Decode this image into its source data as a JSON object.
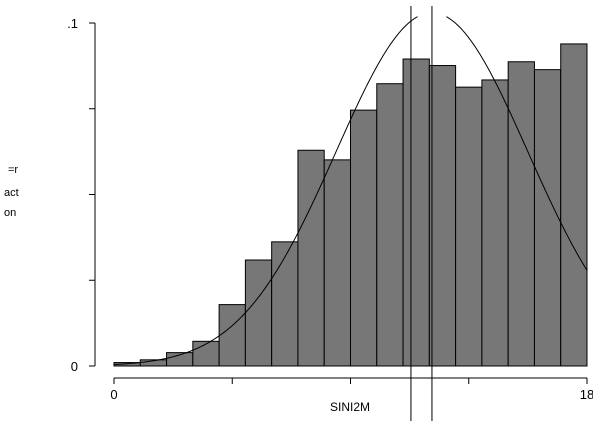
{
  "chart_data": {
    "type": "bar",
    "title": "",
    "xlabel": "SINI2M",
    "ylabel_lines": [
      "=r",
      "act",
      "on"
    ],
    "xlim": [
      0,
      18
    ],
    "ylim": [
      0,
      0.1
    ],
    "x_ticks": [
      {
        "value": 0,
        "label": "0"
      },
      {
        "value": 18,
        "label": "18"
      }
    ],
    "x_minor_ticks": [
      4.5,
      9,
      13.5
    ],
    "y_ticks": [
      {
        "value": 0,
        "label": "0"
      },
      {
        "value": 0.1,
        "label": ".1"
      }
    ],
    "y_minor_ticks": [
      0.025,
      0.05,
      0.075
    ],
    "bins": [
      {
        "x0": 0,
        "x1": 1,
        "value": 0.001
      },
      {
        "x0": 1,
        "x1": 2,
        "value": 0.0018
      },
      {
        "x0": 2,
        "x1": 3,
        "value": 0.0039
      },
      {
        "x0": 3,
        "x1": 4,
        "value": 0.0072
      },
      {
        "x0": 4,
        "x1": 5,
        "value": 0.0179
      },
      {
        "x0": 5,
        "x1": 6,
        "value": 0.0309
      },
      {
        "x0": 6,
        "x1": 7,
        "value": 0.0362
      },
      {
        "x0": 7,
        "x1": 8,
        "value": 0.0629
      },
      {
        "x0": 8,
        "x1": 9,
        "value": 0.0601
      },
      {
        "x0": 9,
        "x1": 10,
        "value": 0.0746
      },
      {
        "x0": 10,
        "x1": 11,
        "value": 0.0823
      },
      {
        "x0": 11,
        "x1": 12,
        "value": 0.0895
      },
      {
        "x0": 12,
        "x1": 13,
        "value": 0.0876
      },
      {
        "x0": 13,
        "x1": 14,
        "value": 0.0813
      },
      {
        "x0": 14,
        "x1": 15,
        "value": 0.0834
      },
      {
        "x0": 15,
        "x1": 16,
        "value": 0.0887
      },
      {
        "x0": 16,
        "x1": 17,
        "value": 0.0864
      },
      {
        "x0": 17,
        "x1": 18,
        "value": 0.0939
      }
    ],
    "normal_curve": {
      "mean": 12.1,
      "sd": 3.65,
      "peak": 0.103
    },
    "vertical_lines": [
      11.3,
      12.1
    ],
    "colors": {
      "bar_fill": "#777777",
      "stroke": "#000000"
    }
  }
}
